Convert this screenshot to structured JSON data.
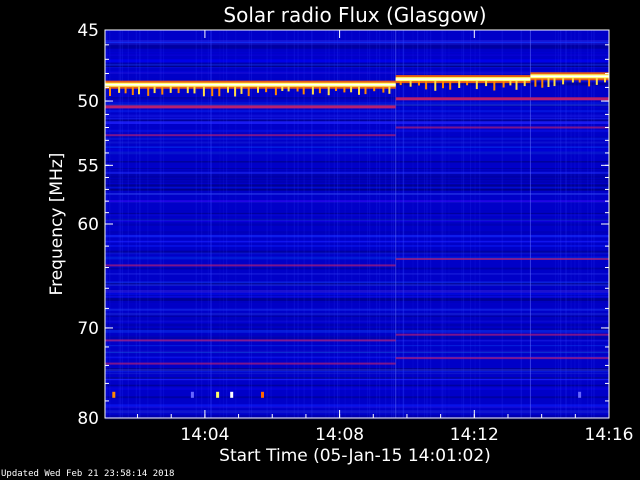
{
  "chart_data": {
    "type": "heatmap",
    "title": "Solar radio Flux (Glasgow)",
    "ylabel": "Frequency [MHz]",
    "xlabel": "Start Time (05-Jan-15 14:01:02)",
    "ylim": [
      45,
      80
    ],
    "y_scale": "log",
    "x_range": [
      "14:01:02",
      "14:16:00"
    ],
    "x_ticks": [
      "14:04",
      "14:08",
      "14:12",
      "14:16"
    ],
    "y_ticks": [
      "45",
      "50",
      "55",
      "60",
      "70",
      "80"
    ],
    "segment_boundaries": [
      "14:09:40",
      "14:13:40"
    ],
    "bright_bands_mhz": [
      {
        "start": "14:01:02",
        "end": "14:09:40",
        "freq": 48.8
      },
      {
        "start": "14:09:40",
        "end": "14:13:40",
        "freq": 48.4
      },
      {
        "start": "14:13:40",
        "end": "14:16:00",
        "freq": 48.2
      }
    ],
    "colors": {
      "background": "#0000c8",
      "band_low": "#cc2266",
      "band_high": "#ffff66",
      "axes": "#ffffff"
    }
  },
  "footer": {
    "updated": "Updated Wed Feb 21 23:58:14 2018"
  }
}
